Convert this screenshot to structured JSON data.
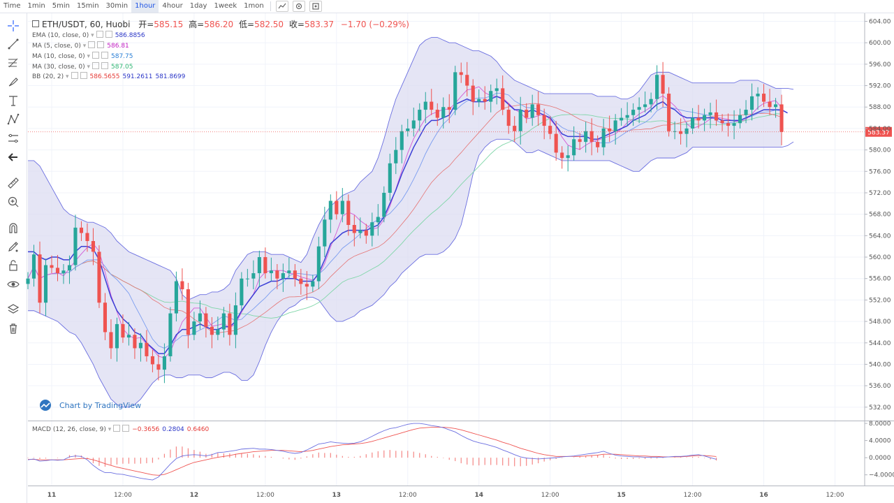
{
  "toolbar": {
    "timeframes": [
      "Time",
      "1min",
      "5min",
      "15min",
      "30min",
      "1hour",
      "4hour",
      "1day",
      "1week",
      "1mon"
    ],
    "active_timeframe": "1hour"
  },
  "legend": {
    "symbol": "ETH/USDT, 60, Huobi",
    "open_label": "开=",
    "open": "585.15",
    "high_label": "高=",
    "high": "586.20",
    "low_label": "低=",
    "low": "582.50",
    "close_label": "收=",
    "close": "583.37",
    "change": "−1.70 (−0.29%)"
  },
  "indicators": [
    {
      "name": "EMA (10, close, 0)",
      "values": [
        "586.8856"
      ],
      "colors": [
        "#2a35c7"
      ]
    },
    {
      "name": "MA (5, close, 0)",
      "values": [
        "586.81"
      ],
      "colors": [
        "#c21fc2"
      ]
    },
    {
      "name": "MA (10, close, 0)",
      "values": [
        "587.75"
      ],
      "colors": [
        "#2a7fd6"
      ]
    },
    {
      "name": "MA (30, close, 0)",
      "values": [
        "587.05"
      ],
      "colors": [
        "#2fb573"
      ]
    },
    {
      "name": "BB (20, 2)",
      "values": [
        "586.5655",
        "591.2611",
        "581.8699"
      ],
      "colors": [
        "#e53935",
        "#2a35c7",
        "#2a35c7"
      ]
    }
  ],
  "macd_legend": {
    "name": "MACD (12, 26, close, 9)",
    "values": [
      "−0.3656",
      "0.2804",
      "0.6460"
    ],
    "colors": [
      "#e53935",
      "#2a35c7",
      "#e53935"
    ]
  },
  "watermark": "Chart by TradingView",
  "last_price_label": "583.37",
  "colors": {
    "up": "#26a69a",
    "down": "#ef5350",
    "bb": "#6a6ee0",
    "bbfill": "#dcdcf2",
    "ema": "#3b3fd6",
    "ma5": "#d35ad6",
    "ma10": "#7a9cf0",
    "ma30": "#7fd6a8",
    "macd": "#6a6ee0",
    "signal": "#ef5350"
  },
  "chart_data": {
    "type": "line",
    "title": "",
    "y_ticks": [
      "604.00",
      "600.00",
      "596.00",
      "592.00",
      "588.00",
      "584.00",
      "580.00",
      "576.00",
      "572.00",
      "568.00",
      "564.00",
      "560.00",
      "556.00",
      "552.00",
      "548.00",
      "544.00",
      "540.00",
      "536.00",
      "532.00"
    ],
    "ylim": [
      529.5,
      605.5
    ],
    "macd_ticks": [
      "8.0000",
      "4.0000",
      "0.0000",
      "−4.0000"
    ],
    "macd_ylim": [
      -6.5,
      8.5
    ],
    "x_labels": [
      "11",
      "12:00",
      "12",
      "12:00",
      "13",
      "12:00",
      "14",
      "12:00",
      "15",
      "12:00",
      "16",
      "12:00"
    ],
    "x_label_hours": [
      0,
      12,
      24,
      36,
      48,
      60,
      72,
      84,
      96,
      108,
      120,
      132
    ],
    "x_range_hours": [
      -4,
      137
    ],
    "series_hours_start": -4,
    "series_hours_step": 1,
    "close": [
      556,
      560.5,
      551.5,
      558.5,
      558,
      557,
      557.5,
      558.5,
      565.5,
      564.5,
      563,
      561,
      551.5,
      546,
      543,
      547.5,
      545,
      545.5,
      543,
      544,
      541.5,
      540,
      539,
      541.5,
      549.5,
      555.5,
      554,
      545.5,
      548,
      549.5,
      547,
      545.5,
      546.5,
      549.5,
      545.5,
      551,
      556,
      556,
      557,
      560,
      557,
      557.5,
      556,
      557,
      557.5,
      556,
      555,
      554.5,
      555.5,
      562,
      567,
      570.5,
      568,
      570.5,
      566,
      564.5,
      565,
      564,
      566.5,
      567.5,
      572,
      577.5,
      580,
      583.5,
      584,
      585.5,
      587.5,
      589,
      587.5,
      586,
      588,
      587.5,
      594.5,
      594,
      592,
      589,
      589.5,
      589,
      591,
      591.5,
      587.5,
      584.5,
      583.5,
      587.5,
      586,
      588.5,
      586.5,
      584.5,
      583,
      579.5,
      578.5,
      579,
      582,
      581.5,
      583.5,
      581.5,
      580.5,
      584,
      583.5,
      585.5,
      586,
      586.5,
      587.5,
      588,
      588.5,
      589.5,
      594,
      590.5,
      583.5,
      583.5,
      583,
      584,
      586,
      585.5,
      586.5,
      587,
      585.5,
      585,
      584.5,
      585,
      586.5,
      587.5,
      590,
      590.5,
      589,
      588,
      588.5,
      583.37
    ],
    "ema10": [
      561,
      561,
      560,
      559.5,
      560,
      560,
      559.5,
      559.5,
      561,
      562,
      562,
      561.5,
      559.5,
      556,
      552.5,
      550,
      548.5,
      547.5,
      546,
      545.5,
      544,
      543,
      542,
      542,
      543.5,
      545.5,
      546.5,
      546.5,
      547,
      547.5,
      547,
      546.5,
      546.5,
      547,
      547,
      548,
      550,
      551.5,
      553,
      554.5,
      555,
      555.5,
      555.5,
      556,
      556,
      556,
      555.5,
      555.5,
      555.5,
      557,
      559.5,
      562.5,
      563.5,
      564.5,
      565,
      565,
      565,
      565,
      565.5,
      566,
      567.5,
      570,
      572.5,
      575.5,
      578,
      580.5,
      582.5,
      584.5,
      585.5,
      585.5,
      586,
      586.5,
      588.5,
      589,
      589.5,
      589,
      589,
      589,
      589.5,
      590,
      589.5,
      588.5,
      587.5,
      587.5,
      587,
      587.5,
      587,
      586.5,
      586,
      584.5,
      583,
      582.5,
      582.5,
      582.5,
      582.5,
      582,
      582,
      582.5,
      583,
      583.5,
      584,
      584.5,
      585.5,
      586,
      586.5,
      587.5,
      588.5,
      589,
      588,
      587.5,
      586.5,
      586,
      586,
      586,
      586,
      586,
      586,
      585.5,
      585.5,
      585.5,
      585.5,
      586,
      586.5,
      587,
      587.5,
      587.5,
      587.5,
      587.5,
      586.9
    ],
    "bb_upper": [
      578,
      578,
      577,
      575,
      573,
      571,
      569,
      568,
      567.5,
      567,
      566.5,
      566.5,
      566,
      565.5,
      564.5,
      563,
      562,
      561,
      560.5,
      560,
      559.5,
      559,
      558.5,
      558,
      557.5,
      556,
      553,
      552,
      552.5,
      553,
      553,
      553.5,
      553.5,
      554,
      555,
      557.5,
      559,
      560.5,
      561,
      561,
      561,
      560.5,
      560.5,
      560.5,
      560,
      559.5,
      559,
      560.5,
      563.5,
      566,
      568,
      569.5,
      570.5,
      571.5,
      572,
      572.5,
      574,
      575,
      576,
      578.5,
      582,
      586,
      589.5,
      592,
      594.5,
      597,
      599.5,
      600.5,
      601,
      601,
      600.5,
      600,
      600,
      599.5,
      599,
      598.5,
      598.5,
      598,
      597.5,
      596.5,
      595,
      594,
      593,
      592.5,
      592,
      591.5,
      591,
      590.5,
      590.5,
      590.5,
      590.5,
      590.5,
      590.5,
      590.5,
      590.5,
      590.5,
      590,
      590,
      590,
      590,
      589.5,
      589.5,
      590,
      591,
      592.5,
      594,
      594.5,
      594.5,
      594.5,
      594,
      593.5,
      593,
      592.5,
      592.5,
      592.5,
      592.5,
      592.5,
      592.5,
      592.5,
      592.5,
      593,
      593,
      593,
      593,
      592.5,
      592,
      591.5,
      591.5,
      591.5,
      591.3
    ],
    "bb_lower": [
      550,
      550,
      549.5,
      549,
      548.5,
      548,
      547,
      546,
      545.5,
      544,
      542,
      540,
      537.5,
      535.5,
      533.5,
      532.5,
      532,
      532,
      532.5,
      533.5,
      535,
      536.5,
      537.5,
      538,
      538,
      537.5,
      537.5,
      538,
      538,
      538,
      537.5,
      537.5,
      538,
      538.5,
      538.5,
      538,
      537,
      537,
      538,
      540.5,
      543.5,
      546,
      548,
      549.5,
      550.5,
      551,
      552,
      552.5,
      552.5,
      552,
      550.5,
      549,
      548,
      548,
      548.5,
      549,
      550,
      550.5,
      551,
      552,
      553,
      554.5,
      555.5,
      557,
      558,
      559,
      560,
      560.5,
      560.5,
      560.5,
      561,
      562,
      563.5,
      566,
      570.5,
      575.5,
      579,
      580.5,
      581.5,
      582,
      582,
      582,
      581.5,
      580.5,
      579.5,
      579.5,
      580,
      579.5,
      579,
      578.5,
      578,
      578,
      578,
      578,
      578,
      578,
      578,
      578,
      578,
      577.5,
      577,
      576.5,
      576,
      576,
      577,
      578,
      578.5,
      578.5,
      578.5,
      578.5,
      579,
      579.5,
      580.5,
      580.5,
      580.5,
      580.5,
      580.5,
      580.5,
      580.5,
      580.5,
      580.5,
      580.5,
      580.5,
      580.5,
      580.5,
      580.5,
      580.5,
      580.5,
      580.8,
      581.5
    ],
    "macd": [
      -0.5,
      -0.3,
      -0.8,
      -0.7,
      -0.5,
      -0.6,
      -0.5,
      0.2,
      0.4,
      0.3,
      -0.5,
      -1.8,
      -2.8,
      -3.5,
      -3.5,
      -3.8,
      -3.9,
      -4.2,
      -4.5,
      -4.8,
      -5.0,
      -5.2,
      -4.5,
      -3.0,
      -1.5,
      -0.2,
      0.4,
      0.6,
      0.7,
      0.6,
      0.4,
      0.7,
      1.2,
      1.3,
      1.5,
      1.7,
      2.0,
      2.1,
      2.2,
      2.0,
      2.0,
      1.9,
      1.7,
      1.5,
      1.2,
      1.0,
      1.2,
      1.8,
      2.5,
      3.2,
      3.4,
      3.7,
      3.5,
      3.4,
      3.3,
      3.4,
      3.7,
      4.3,
      5.0,
      5.7,
      6.3,
      6.8,
      7.0,
      7.4,
      7.8,
      8.0,
      8.0,
      7.8,
      7.5,
      7.3,
      7.0,
      6.5,
      6.0,
      5.2,
      4.5,
      3.9,
      3.5,
      3.2,
      2.8,
      2.4,
      1.8,
      1.3,
      0.7,
      0.2,
      -0.1,
      -0.2,
      -0.3,
      -0.2,
      -0.1,
      0.0,
      0.2,
      0.3,
      0.4,
      0.6,
      0.8,
      1.0,
      1.2,
      1.5,
      1.0,
      0.6,
      0.4,
      0.3,
      0.2,
      0.2,
      0.1,
      0.1,
      0.1,
      0.1,
      0.2,
      0.3,
      0.3,
      0.4,
      0.6,
      0.7,
      0.4,
      0.0,
      -0.37
    ],
    "signal": [
      -0.4,
      -0.4,
      -0.5,
      -0.5,
      -0.5,
      -0.5,
      -0.5,
      -0.4,
      -0.3,
      -0.2,
      -0.2,
      -0.5,
      -0.9,
      -1.4,
      -1.8,
      -2.2,
      -2.5,
      -2.8,
      -3.1,
      -3.4,
      -3.7,
      -4.0,
      -4.1,
      -3.9,
      -3.4,
      -2.8,
      -2.2,
      -1.6,
      -1.1,
      -0.8,
      -0.5,
      -0.2,
      0.1,
      0.3,
      0.5,
      0.8,
      1.0,
      1.2,
      1.4,
      1.5,
      1.6,
      1.7,
      1.7,
      1.7,
      1.6,
      1.5,
      1.4,
      1.5,
      1.7,
      2.0,
      2.3,
      2.6,
      2.8,
      3.0,
      3.1,
      3.2,
      3.3,
      3.5,
      3.8,
      4.2,
      4.6,
      5.0,
      5.4,
      5.8,
      6.2,
      6.6,
      6.9,
      7.0,
      7.1,
      7.1,
      7.1,
      7.0,
      6.8,
      6.5,
      6.1,
      5.7,
      5.3,
      4.9,
      4.5,
      4.1,
      3.6,
      3.2,
      2.7,
      2.2,
      1.8,
      1.4,
      1.0,
      0.7,
      0.5,
      0.3,
      0.3,
      0.3,
      0.3,
      0.3,
      0.4,
      0.5,
      0.6,
      0.8,
      0.8,
      0.8,
      0.7,
      0.6,
      0.5,
      0.4,
      0.4,
      0.3,
      0.3,
      0.2,
      0.2,
      0.2,
      0.2,
      0.3,
      0.4,
      0.5,
      0.5,
      0.4,
      0.28
    ]
  }
}
